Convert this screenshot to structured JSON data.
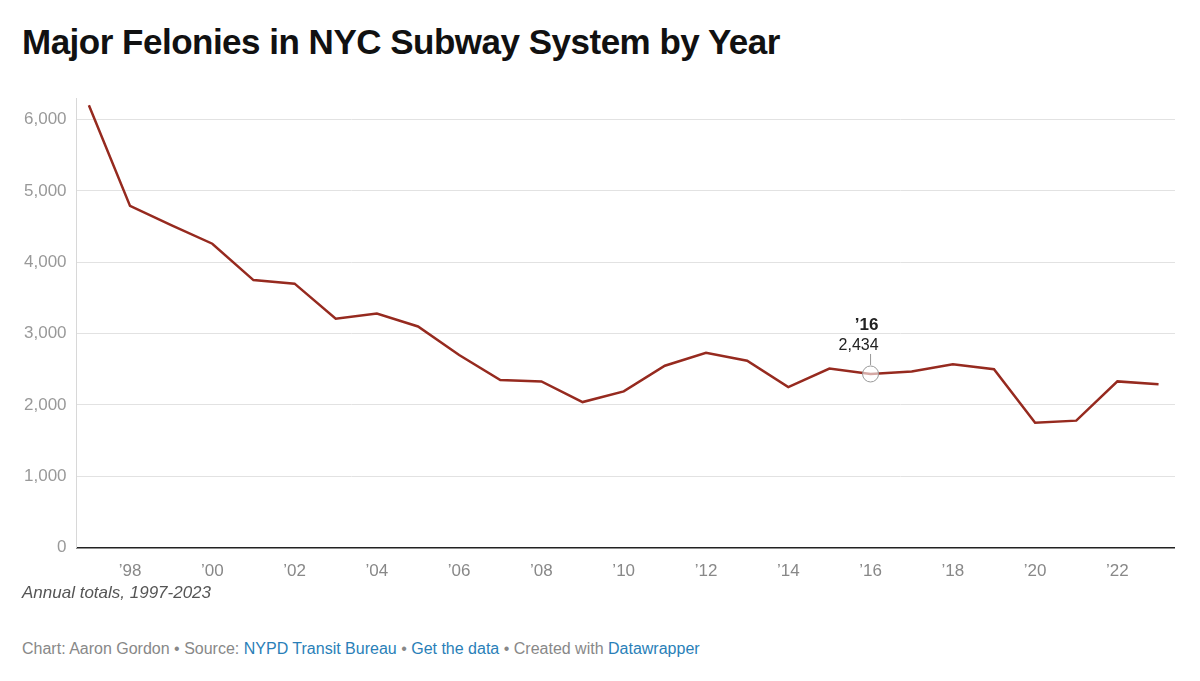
{
  "chart_data": {
    "type": "line",
    "title": "Major Felonies in NYC Subway System by Year",
    "subtitle": "Annual totals, 1997-2023",
    "credits": {
      "separator": " • ",
      "parts": [
        [
          {
            "text": "Chart: Aaron Gordon"
          }
        ],
        [
          {
            "text": "Source: "
          },
          {
            "text": "NYPD Transit Bureau",
            "color": "#2a7fb8"
          }
        ],
        [
          {
            "text": "Get the data",
            "color": "#2a7fb8"
          }
        ],
        [
          {
            "text": "Created with "
          },
          {
            "text": "Datawrapper",
            "color": "#2a7fb8"
          }
        ]
      ]
    },
    "x": [
      1997,
      1998,
      1999,
      2000,
      2001,
      2002,
      2003,
      2004,
      2005,
      2006,
      2007,
      2008,
      2009,
      2010,
      2011,
      2012,
      2013,
      2014,
      2015,
      2016,
      2017,
      2018,
      2019,
      2020,
      2021,
      2022,
      2023
    ],
    "values": [
      6200,
      4790,
      4520,
      4260,
      3750,
      3700,
      3210,
      3280,
      3100,
      2700,
      2350,
      2330,
      2040,
      2190,
      2550,
      2730,
      2620,
      2250,
      2510,
      2434,
      2470,
      2570,
      2500,
      1750,
      1780,
      2330,
      2290
    ],
    "color": "#962a1f",
    "xlim": [
      1996.7,
      2023.4
    ],
    "xticks": [
      {
        "value": 1998,
        "label": "’98"
      },
      {
        "value": 2000,
        "label": "’00"
      },
      {
        "value": 2002,
        "label": "’02"
      },
      {
        "value": 2004,
        "label": "’04"
      },
      {
        "value": 2006,
        "label": "’06"
      },
      {
        "value": 2008,
        "label": "’08"
      },
      {
        "value": 2010,
        "label": "’10"
      },
      {
        "value": 2012,
        "label": "’12"
      },
      {
        "value": 2014,
        "label": "’14"
      },
      {
        "value": 2016,
        "label": "’16"
      },
      {
        "value": 2018,
        "label": "’18"
      },
      {
        "value": 2020,
        "label": "’20"
      },
      {
        "value": 2022,
        "label": "’22"
      }
    ],
    "ylim": [
      0,
      6300
    ],
    "yticks": [
      0,
      {
        "value": 1000,
        "label": "1,000"
      },
      {
        "value": 2000,
        "label": "2,000"
      },
      {
        "value": 3000,
        "label": "3,000"
      },
      {
        "value": 4000,
        "label": "4,000"
      },
      {
        "value": 5000,
        "label": "5,000"
      },
      {
        "value": 6000,
        "label": "6,000"
      }
    ],
    "grid": true,
    "annotations": [
      {
        "x": 2016,
        "y": 2434,
        "title": "’16",
        "text": "2,434"
      }
    ]
  }
}
